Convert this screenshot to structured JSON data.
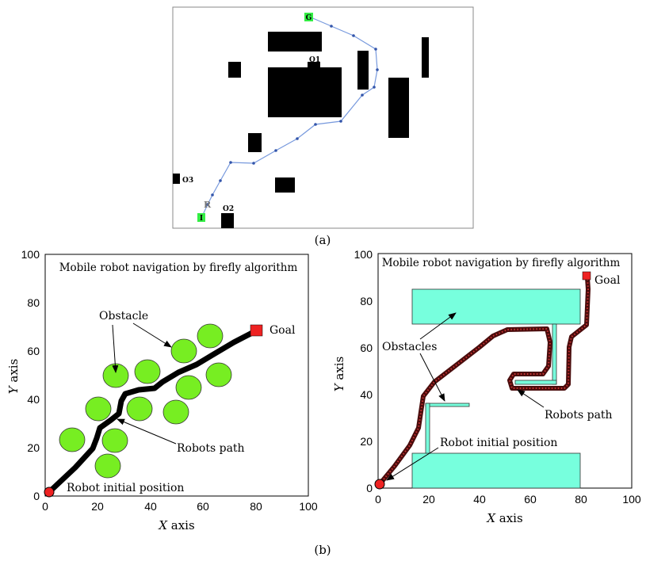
{
  "figure": {
    "caption_a": "(a)",
    "caption_b": "(b)"
  },
  "panel_a": {
    "labels": {
      "goal": "G",
      "robot": "R",
      "start": "I",
      "o1": "O1",
      "o2": "O2",
      "o3": "O3"
    },
    "colors": {
      "marker": "#33ee44",
      "path": "#7799dd",
      "obstacle": "#000000"
    }
  },
  "panel_b_left": {
    "title": "Mobile robot navigation by firefly algorithm",
    "xlabel_prefix": "X",
    "xlabel_suffix": " axis",
    "ylabel_prefix": "Y",
    "ylabel_suffix": " axis",
    "xticks": [
      "0",
      "20",
      "40",
      "60",
      "80",
      "100"
    ],
    "yticks": [
      "0",
      "20",
      "40",
      "60",
      "80",
      "100"
    ],
    "annotations": {
      "goal": "Goal",
      "obstacle": "Obstacle",
      "path": "Robots path",
      "start": "Robot initial position"
    },
    "colors": {
      "obstacle": "#77ee22",
      "path": "#000000",
      "goal": "#ee2222"
    }
  },
  "panel_b_right": {
    "title": "Mobile robot navigation by firefly algorithm",
    "xlabel_prefix": "X",
    "xlabel_suffix": " axis",
    "ylabel_prefix": "Y",
    "ylabel_suffix": " axis",
    "xticks": [
      "0",
      "20",
      "40",
      "60",
      "80",
      "100"
    ],
    "yticks": [
      "0",
      "20",
      "40",
      "60",
      "80",
      "100"
    ],
    "annotations": {
      "goal": "Goal",
      "obstacles": "Obstacles",
      "path": "Robots path",
      "start": "Robot initial position"
    },
    "colors": {
      "obstacle": "#77ffdd",
      "path": "#4a0c0c",
      "goal": "#ee2222"
    }
  }
}
